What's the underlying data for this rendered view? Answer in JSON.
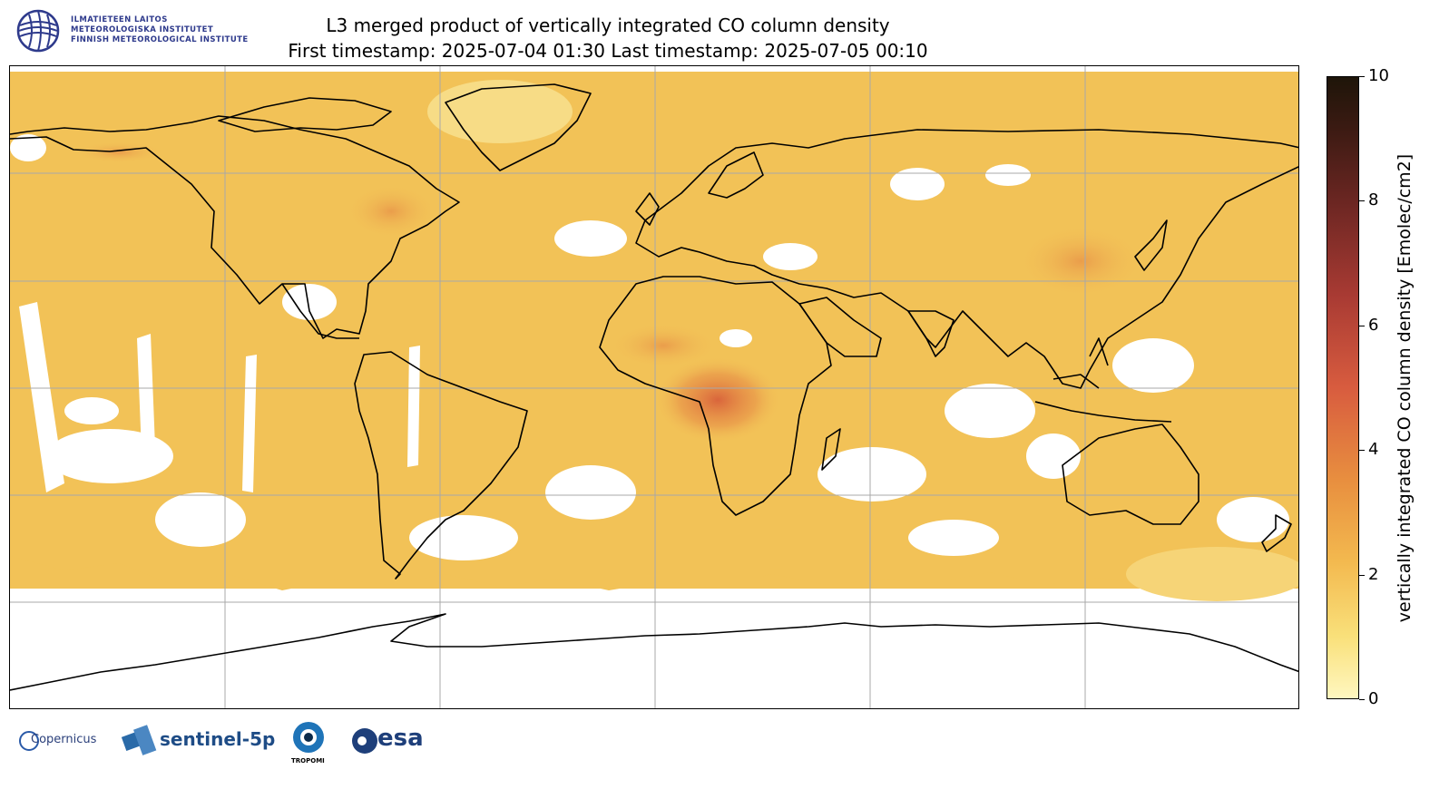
{
  "institute": {
    "line1": "ILMATIETEEN LAITOS",
    "line2": "METEOROLOGISKA INSTITUTET",
    "line3": "FINNISH METEOROLOGICAL INSTITUTE"
  },
  "title": {
    "line1": "L3 merged product of vertically integrated CO column density",
    "line2": "First timestamp: 2025-07-04 01:30   Last timestamp: 2025-07-05 00:10"
  },
  "colorbar": {
    "label": "vertically integrated CO column density [Emolec/cm2]",
    "min": 0,
    "max": 10,
    "ticks": [
      "0",
      "2",
      "4",
      "6",
      "8",
      "10"
    ],
    "colors": [
      "#fff7c0",
      "#f3b94f",
      "#d85c3f",
      "#6b2622",
      "#1e1509"
    ]
  },
  "map": {
    "projection": "plate carree",
    "extent_lon": [
      -180,
      180
    ],
    "extent_lat": [
      -90,
      90
    ],
    "grid_lon": [
      -120,
      -60,
      0,
      60,
      120
    ],
    "grid_lat": [
      -60,
      -30,
      0,
      30,
      60
    ],
    "fill_color": "#f2c257",
    "hotspot_color": "#d86a3a"
  },
  "logos": {
    "copernicus": "Copernicus",
    "sentinel": "sentinel-5p",
    "tropomi": "TROPOMI",
    "esa": "esa"
  }
}
